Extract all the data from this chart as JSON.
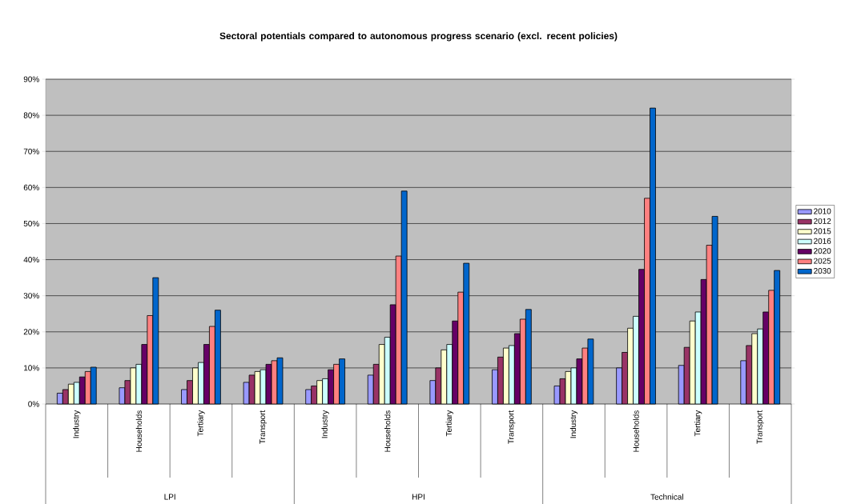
{
  "chart_data": {
    "type": "bar",
    "title": "Sectoral potentials compared to autonomous progress scenario (excl. recent policies)",
    "categories": [
      "Industry",
      "Households",
      "Tertiary",
      "Transport",
      "Industry",
      "Households",
      "Tertiary",
      "Transport",
      "Industry",
      "Households",
      "Tertiary",
      "Transport"
    ],
    "annotations": [
      "LPI",
      "HPI",
      "Technical"
    ],
    "series": [
      {
        "name": "2010",
        "color": "#9999ff",
        "values": [
          3,
          4.5,
          4,
          6,
          4,
          8,
          6.5,
          9.5,
          5,
          10,
          10.7,
          12
        ]
      },
      {
        "name": "2012",
        "color": "#993366",
        "values": [
          4,
          6.5,
          6.5,
          8,
          5,
          11,
          10,
          13,
          7,
          14.3,
          15.7,
          16.2
        ]
      },
      {
        "name": "2015",
        "color": "#ffffcc",
        "values": [
          5.5,
          10,
          10,
          9,
          6.5,
          16.5,
          15,
          15.5,
          9,
          21,
          23,
          19.5
        ]
      },
      {
        "name": "2016",
        "color": "#ccffff",
        "values": [
          6,
          11,
          11.5,
          9.5,
          7,
          18.5,
          16.5,
          16.2,
          10,
          24.3,
          25.5,
          20.8
        ]
      },
      {
        "name": "2020",
        "color": "#660066",
        "values": [
          7.5,
          16.5,
          16.5,
          11,
          9.5,
          27.5,
          23,
          19.5,
          12.5,
          37.3,
          34.5,
          25.5
        ]
      },
      {
        "name": "2025",
        "color": "#ff8080",
        "values": [
          9,
          24.5,
          21.5,
          12,
          11,
          41,
          31,
          23.5,
          15.5,
          57,
          44,
          31.5
        ]
      },
      {
        "name": "2030",
        "color": "#0066cc",
        "values": [
          10.2,
          35,
          26,
          12.8,
          12.5,
          59,
          39,
          26.2,
          18,
          82,
          52,
          37
        ]
      }
    ],
    "ylim": [
      0,
      90
    ],
    "yticks": [
      {
        "value": 0,
        "label": "0%"
      },
      {
        "value": 10,
        "label": "10%"
      },
      {
        "value": 20,
        "label": "20%"
      },
      {
        "value": 30,
        "label": "30%"
      },
      {
        "value": 40,
        "label": "40%"
      },
      {
        "value": 50,
        "label": "50%"
      },
      {
        "value": 60,
        "label": "60%"
      },
      {
        "value": 70,
        "label": "70%"
      },
      {
        "value": 80,
        "label": "80%"
      },
      {
        "value": 90,
        "label": "90%"
      }
    ],
    "grid": "y",
    "legend": "right"
  }
}
